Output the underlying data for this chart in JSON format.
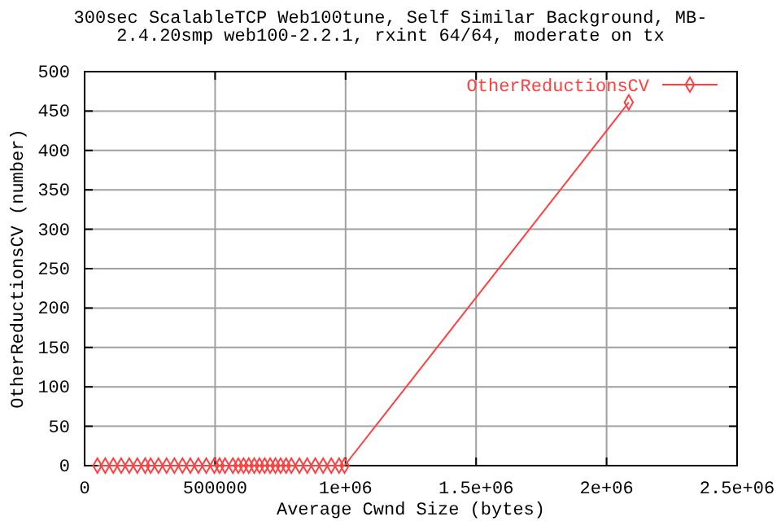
{
  "chart_data": {
    "type": "line",
    "title": "300sec ScalableTCP  Web100tune, Self Similar Background, MB-",
    "subtitle": "2.4.20smp web100-2.2.1, rxint 64/64, moderate on tx",
    "xlabel": "Average Cwnd Size (bytes)",
    "ylabel": "OtherReductionsCV (number)",
    "xlim": [
      0,
      2500000
    ],
    "ylim": [
      0,
      500
    ],
    "xticks": [
      0,
      500000,
      {
        "value": 1000000,
        "label": "1e+06"
      },
      {
        "value": 1500000,
        "label": "1.5e+06"
      },
      {
        "value": 2000000,
        "label": "2e+06"
      },
      {
        "value": 2500000,
        "label": "2.5e+06"
      }
    ],
    "yticks": [
      0,
      50,
      100,
      150,
      200,
      250,
      300,
      350,
      400,
      450,
      500
    ],
    "grid": true,
    "legend": "top right",
    "marker": "diamond",
    "line_style": "solid",
    "series": [
      {
        "name": "OtherReductionsCV",
        "color": "#ff4040",
        "x": [
          49000,
          79000,
          110000,
          140000,
          171000,
          202000,
          232000,
          253000,
          283000,
          314000,
          344000,
          375000,
          405000,
          436000,
          466000,
          497000,
          517000,
          538000,
          568000,
          589000,
          609000,
          629000,
          650000,
          670000,
          690000,
          711000,
          731000,
          751000,
          772000,
          792000,
          823000,
          853000,
          884000,
          914000,
          945000,
          975000,
          996000,
          2085000
        ],
        "values": [
          0,
          0,
          0,
          0,
          0,
          0,
          0,
          0,
          0,
          0,
          0,
          0,
          0,
          0,
          0,
          0,
          0,
          0,
          0,
          0,
          0,
          0,
          0,
          0,
          0,
          0,
          0,
          0,
          0,
          0,
          0,
          0,
          0,
          0,
          0,
          0,
          0,
          461
        ]
      }
    ]
  }
}
